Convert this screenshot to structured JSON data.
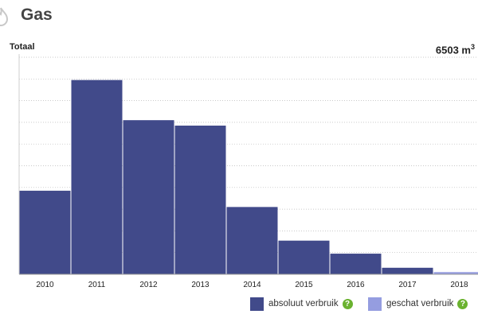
{
  "header": {
    "title": "Gas",
    "icon": "flame-icon"
  },
  "chart_header": {
    "label": "Totaal",
    "total_value": "6503 m",
    "total_unit_exp": "3"
  },
  "colors": {
    "absolute": "#414a8a",
    "estimated": "#959de0",
    "grid": "#b8b8b8"
  },
  "legend": [
    {
      "label": "absoluut verbruik",
      "color": "#414a8a",
      "help_icon": "question-icon"
    },
    {
      "label": "geschat verbruik",
      "color": "#959de0",
      "help_icon": "question-icon"
    }
  ],
  "chart_data": {
    "type": "bar",
    "categories": [
      "2010",
      "2011",
      "2012",
      "2013",
      "2014",
      "2015",
      "2016",
      "2017",
      "2018"
    ],
    "series": [
      {
        "name": "absoluut verbruik",
        "values": [
          3.85,
          8.95,
          7.1,
          6.85,
          3.1,
          1.55,
          0.95,
          0.3,
          0
        ]
      },
      {
        "name": "geschat verbruik",
        "values": [
          0,
          0,
          0,
          0,
          0,
          0,
          0,
          0,
          0.1
        ]
      }
    ],
    "title": "Totaal",
    "xlabel": "",
    "ylabel": "",
    "ylim": [
      0,
      10
    ],
    "gridlines": 10,
    "grid": true,
    "legend_position": "bottom-right"
  }
}
